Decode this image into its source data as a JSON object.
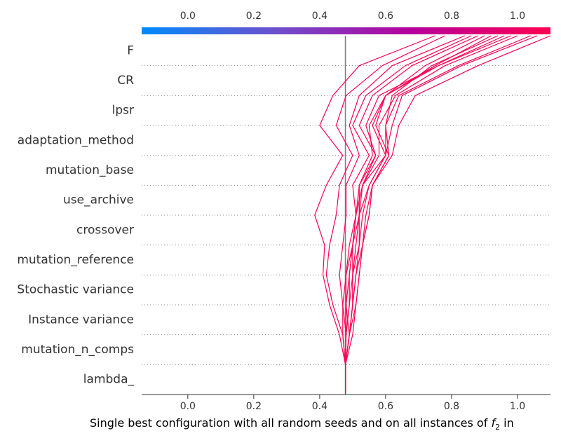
{
  "chart_data": {
    "type": "line",
    "subtype": "decision-plot",
    "xlabel_prefix": "Single best configuration with all random seeds and on all instances of ",
    "xlabel_math": "f",
    "xlabel_sub": "2",
    "xlabel_suffix": " in",
    "xlim": [
      -0.14,
      1.1
    ],
    "xticks": [
      0.0,
      0.2,
      0.4,
      0.6,
      0.8,
      1.0
    ],
    "xtick_labels": [
      "0.0",
      "0.2",
      "0.4",
      "0.6",
      "0.8",
      "1.0"
    ],
    "base_value": 0.478,
    "features": [
      "F",
      "CR",
      "lpsr",
      "adaptation_method",
      "mutation_base",
      "use_archive",
      "crossover",
      "mutation_reference",
      "Stochastic variance",
      "Instance variance",
      "mutation_n_comps",
      "lambda_"
    ],
    "colorbar": {
      "min": -0.14,
      "max": 1.1,
      "colors": [
        "#008bfb",
        "#6f4fcd",
        "#b5009c",
        "#ff0052"
      ]
    },
    "line_color": "#ff0052",
    "series": [
      {
        "values": [
          1.1,
          0.88,
          0.69,
          0.64,
          0.62,
          0.56,
          0.55,
          0.53,
          0.51,
          0.5,
          0.49,
          0.478
        ]
      },
      {
        "values": [
          1.06,
          0.83,
          0.65,
          0.62,
          0.6,
          0.55,
          0.52,
          0.52,
          0.5,
          0.5,
          0.49,
          0.478
        ]
      },
      {
        "values": [
          1.04,
          0.82,
          0.64,
          0.6,
          0.6,
          0.53,
          0.51,
          0.5,
          0.49,
          0.49,
          0.48,
          0.478
        ]
      },
      {
        "values": [
          1.0,
          0.78,
          0.63,
          0.58,
          0.58,
          0.53,
          0.51,
          0.5,
          0.48,
          0.48,
          0.48,
          0.478
        ]
      },
      {
        "values": [
          0.98,
          0.76,
          0.6,
          0.55,
          0.56,
          0.52,
          0.51,
          0.49,
          0.48,
          0.47,
          0.47,
          0.478
        ]
      },
      {
        "values": [
          0.96,
          0.76,
          0.58,
          0.54,
          0.57,
          0.52,
          0.52,
          0.5,
          0.5,
          0.49,
          0.48,
          0.478
        ]
      },
      {
        "values": [
          0.92,
          0.75,
          0.6,
          0.56,
          0.6,
          0.55,
          0.53,
          0.52,
          0.51,
          0.5,
          0.49,
          0.478
        ]
      },
      {
        "values": [
          0.94,
          0.74,
          0.62,
          0.6,
          0.61,
          0.56,
          0.55,
          0.53,
          0.52,
          0.51,
          0.5,
          0.478
        ]
      },
      {
        "values": [
          0.9,
          0.72,
          0.6,
          0.57,
          0.61,
          0.56,
          0.54,
          0.53,
          0.52,
          0.51,
          0.49,
          0.478
        ]
      },
      {
        "values": [
          0.88,
          0.68,
          0.56,
          0.52,
          0.57,
          0.53,
          0.52,
          0.51,
          0.5,
          0.5,
          0.49,
          0.478
        ]
      },
      {
        "values": [
          0.86,
          0.66,
          0.54,
          0.5,
          0.55,
          0.5,
          0.51,
          0.5,
          0.49,
          0.48,
          0.49,
          0.478
        ]
      },
      {
        "values": [
          0.84,
          0.62,
          0.52,
          0.49,
          0.52,
          0.48,
          0.48,
          0.47,
          0.46,
          0.47,
          0.48,
          0.478
        ]
      },
      {
        "values": [
          0.78,
          0.59,
          0.48,
          0.45,
          0.5,
          0.46,
          0.45,
          0.43,
          0.42,
          0.44,
          0.47,
          0.478
        ]
      },
      {
        "values": [
          0.75,
          0.52,
          0.44,
          0.4,
          0.47,
          0.42,
          0.385,
          0.415,
          0.41,
          0.43,
          0.46,
          0.478
        ]
      }
    ]
  }
}
